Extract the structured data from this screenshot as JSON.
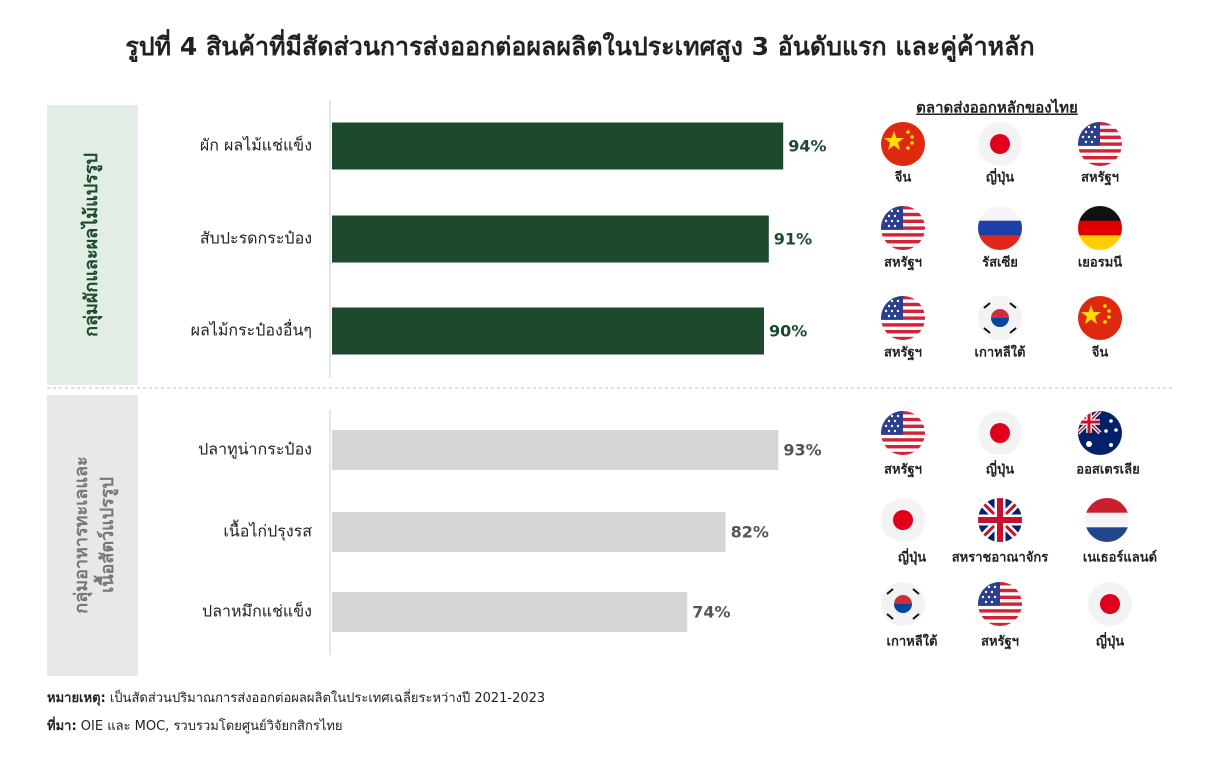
{
  "title": "รูปที่ 4 สินค้าที่มีสัดส่วนการส่งออกต่อผลผลิตในประเทศสูง 3 อันดับแรก และคู่ค้าหลัก",
  "market_header": "ตลาดส่งออกหลักของไทย",
  "chart_data": [
    {
      "type": "bar",
      "orientation": "horizontal",
      "group": [
        "กลุ่มผักและผลไม้แปรรูป"
      ],
      "categories": [
        "ผัก ผลไม้แช่แข็ง",
        "สับปะรดกระป๋อง",
        "ผลไม้กระป๋องอื่นๆ"
      ],
      "values": [
        94,
        91,
        90
      ],
      "value_labels": [
        "94%",
        "91%",
        "90%"
      ],
      "color": "#1d4a2c",
      "label_color": "#1d4a2c",
      "markets": [
        [
          "จีน",
          "ญี่ปุ่น",
          "สหรัฐฯ"
        ],
        [
          "สหรัฐฯ",
          "รัสเซีย",
          "เยอรมนี"
        ],
        [
          "สหรัฐฯ",
          "เกาหลีใต้",
          "จีน"
        ]
      ]
    },
    {
      "type": "bar",
      "orientation": "horizontal",
      "group": [
        "กลุ่มอาหารทะเลและ",
        "เนื้อสัตว์แปรรูป"
      ],
      "categories": [
        "ปลาทูน่ากระป๋อง",
        "เนื้อไก่ปรุงรส",
        "ปลาหมึกแช่แข็ง"
      ],
      "values": [
        93,
        82,
        74
      ],
      "value_labels": [
        "93%",
        "82%",
        "74%"
      ],
      "color": "#d5d5d5",
      "label_color": "#555555",
      "markets": [
        [
          "สหรัฐฯ",
          "ญี่ปุ่น",
          "ออสเตรเลีย"
        ],
        [
          "ญี่ปุ่น",
          "สหราชอาณาจักร",
          "เนเธอร์แลนด์"
        ],
        [
          "เกาหลีใต้",
          "สหรัฐฯ",
          "ญี่ปุ่น"
        ]
      ]
    }
  ],
  "notes": [
    {
      "label": "หมายเหตุ:",
      "text": "เป็นสัดส่วนปริมาณการส่งออกต่อผลผลิตในประเทศเฉลี่ยระหว่างปี 2021-2023"
    },
    {
      "label": "ที่มา:",
      "text": "OIE และ MOC, รวบรวมโดยศูนย์วิจัยกสิกรไทย"
    }
  ]
}
